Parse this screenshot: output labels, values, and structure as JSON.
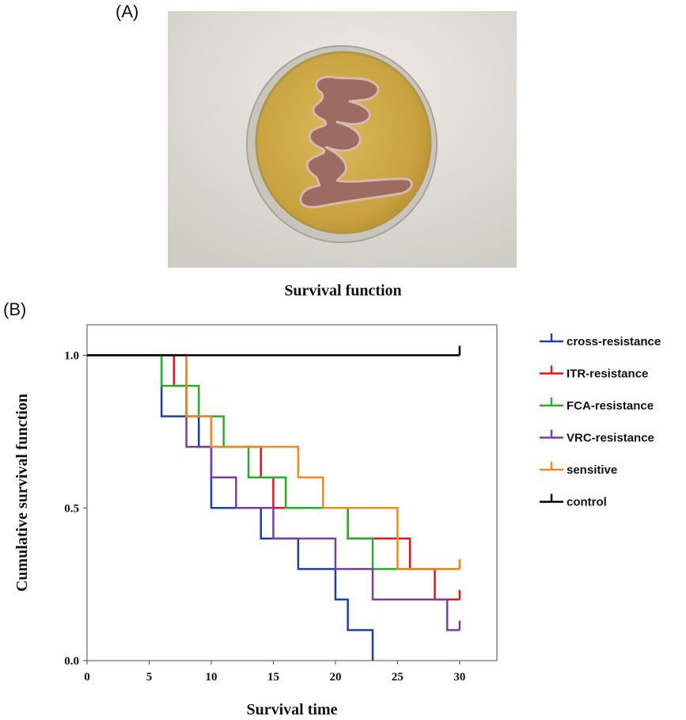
{
  "panels": {
    "a_label": "(A)",
    "b_label": "(B)"
  },
  "photo": {
    "description_icon": "petri-dish-photo"
  },
  "colors": {
    "cross-resistance": "#1f3fa8",
    "ITR-resistance": "#e0141a",
    "FCA-resistance": "#2bab2b",
    "VRC-resistance": "#7a3e9d",
    "sensitive": "#f0891f",
    "control": "#000000"
  },
  "chart_data": {
    "type": "line",
    "step": true,
    "title": "Survival function",
    "xlabel": "Survival time",
    "ylabel": "Cumulative survival function",
    "xlim": [
      0,
      33
    ],
    "ylim": [
      0,
      1.1
    ],
    "xticks": [
      0,
      5,
      10,
      15,
      20,
      25,
      30
    ],
    "yticks": [
      0.0,
      0.5,
      1.0
    ],
    "xtick_labels": [
      "0",
      "5",
      "10",
      "15",
      "20",
      "25",
      "30"
    ],
    "ytick_labels": [
      "0.0",
      "0.5",
      "1.0"
    ],
    "legend_position": "right",
    "series": [
      {
        "name": "cross-resistance",
        "x": [
          0,
          6,
          9,
          10,
          14,
          17,
          20,
          21,
          23
        ],
        "y": [
          1.0,
          0.8,
          0.7,
          0.5,
          0.4,
          0.3,
          0.2,
          0.1,
          0.0
        ],
        "end": 23,
        "censored": []
      },
      {
        "name": "ITR-resistance",
        "x": [
          0,
          7,
          8,
          10,
          14,
          15,
          21,
          26,
          28
        ],
        "y": [
          1.0,
          0.9,
          0.8,
          0.7,
          0.6,
          0.5,
          0.4,
          0.3,
          0.2
        ],
        "end": 30,
        "censored": [
          30
        ]
      },
      {
        "name": "FCA-resistance",
        "x": [
          0,
          6,
          9,
          11,
          13,
          16,
          21,
          23,
          30
        ],
        "y": [
          1.0,
          0.9,
          0.8,
          0.7,
          0.6,
          0.5,
          0.4,
          0.3,
          0.3
        ],
        "end": 30,
        "censored": [
          30
        ]
      },
      {
        "name": "VRC-resistance",
        "x": [
          0,
          8,
          10,
          12,
          15,
          20,
          23,
          29
        ],
        "y": [
          1.0,
          0.7,
          0.6,
          0.5,
          0.4,
          0.3,
          0.2,
          0.1
        ],
        "end": 30,
        "censored": [
          30
        ]
      },
      {
        "name": "sensitive",
        "x": [
          0,
          8,
          10,
          17,
          19,
          25
        ],
        "y": [
          1.0,
          0.8,
          0.7,
          0.6,
          0.5,
          0.3
        ],
        "end": 30,
        "censored": [
          30
        ]
      },
      {
        "name": "control",
        "x": [
          0
        ],
        "y": [
          1.0
        ],
        "end": 30,
        "censored": [
          30
        ]
      }
    ]
  }
}
